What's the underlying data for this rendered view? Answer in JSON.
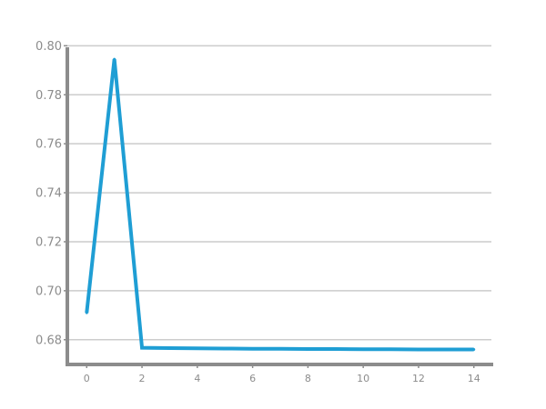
{
  "chart_data": {
    "type": "line",
    "title": "",
    "xlabel": "",
    "ylabel": "",
    "x": [
      0,
      1,
      2,
      3,
      4,
      5,
      6,
      7,
      8,
      9,
      10,
      11,
      12,
      13,
      14
    ],
    "series": [
      {
        "color": "#1f9ed4",
        "values": [
          0.691,
          0.7945,
          0.6767,
          0.6766,
          0.6765,
          0.6764,
          0.6763,
          0.6763,
          0.6762,
          0.6762,
          0.6761,
          0.6761,
          0.676,
          0.676,
          0.676
        ]
      }
    ],
    "xlim": [
      -0.7,
      14.7
    ],
    "ylim": [
      0.6699,
      0.8005
    ],
    "x_ticks": [
      0,
      2,
      4,
      6,
      8,
      10,
      12,
      14
    ],
    "x_tick_labels": [
      "0",
      "2",
      "4",
      "6",
      "8",
      "10",
      "12",
      "14"
    ],
    "y_ticks": [
      0.68,
      0.7,
      0.72,
      0.74,
      0.76,
      0.78,
      0.8
    ],
    "y_tick_labels": [
      "0.68",
      "0.70",
      "0.72",
      "0.74",
      "0.76",
      "0.78",
      "0.80"
    ],
    "grid": "horizontal",
    "legend": "none",
    "colors": {
      "line": "#1f9ed4",
      "grid": "#cccccc",
      "axis": "#8c8c8c",
      "tick_label": "#8c8c8c"
    }
  }
}
